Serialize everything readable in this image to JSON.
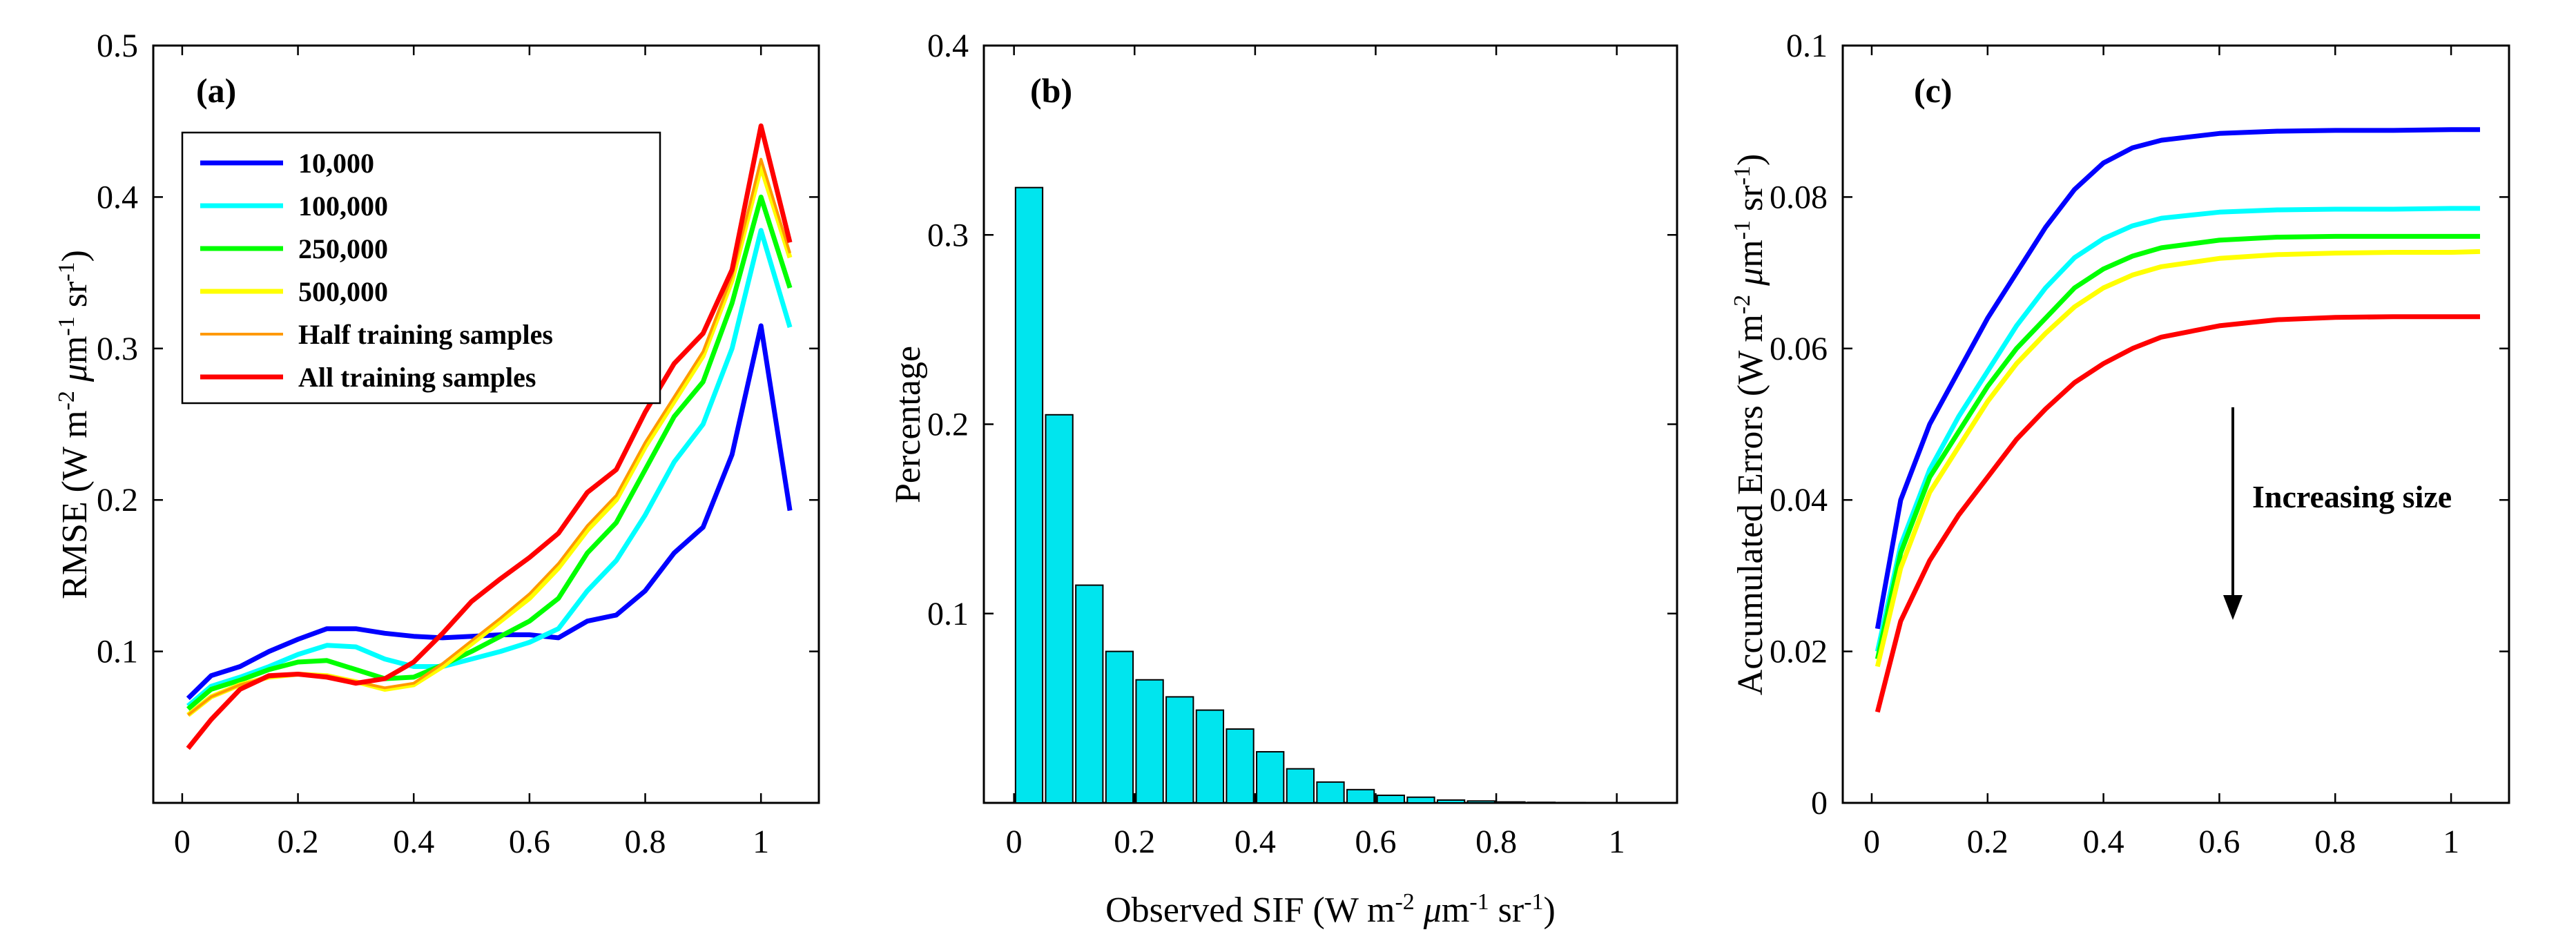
{
  "chart_data": [
    {
      "type": "line",
      "panel_label": "(a)",
      "ylabel": "RMSE (W m",
      "ylabel_sup1": "-2",
      "ylabel_mu": "μ",
      "ylabel_mid": "m",
      "ylabel_sup2": "-1",
      "ylabel_end": " sr",
      "ylabel_sup3": "-1",
      "ylabel_close": ")",
      "xlim": [
        -0.05,
        1.1
      ],
      "ylim": [
        0,
        0.5
      ],
      "xticks": [
        "0",
        "0.2",
        "0.4",
        "0.6",
        "0.8",
        "1"
      ],
      "xtick_values": [
        0,
        0.2,
        0.4,
        0.6,
        0.8,
        1
      ],
      "yticks": [
        "0.1",
        "0.2",
        "0.3",
        "0.4",
        "0.5"
      ],
      "ytick_values": [
        0.1,
        0.2,
        0.3,
        0.4,
        0.5
      ],
      "legend_position": "top-left",
      "x": [
        0.01,
        0.05,
        0.1,
        0.15,
        0.2,
        0.25,
        0.3,
        0.35,
        0.4,
        0.45,
        0.5,
        0.55,
        0.6,
        0.65,
        0.7,
        0.75,
        0.8,
        0.85,
        0.9,
        0.95,
        1.0,
        1.05
      ],
      "series": [
        {
          "name": "10,000",
          "color": "#0000ff",
          "values": [
            0.069,
            0.084,
            0.09,
            0.1,
            0.108,
            0.115,
            0.115,
            0.112,
            0.11,
            0.109,
            0.11,
            0.111,
            0.111,
            0.109,
            0.12,
            0.124,
            0.14,
            0.165,
            0.182,
            0.23,
            0.315,
            0.193
          ]
        },
        {
          "name": "100,000",
          "color": "#00ffff",
          "values": [
            0.064,
            0.077,
            0.083,
            0.09,
            0.098,
            0.104,
            0.103,
            0.095,
            0.09,
            0.09,
            0.095,
            0.1,
            0.106,
            0.115,
            0.14,
            0.16,
            0.19,
            0.225,
            0.25,
            0.3,
            0.378,
            0.314
          ]
        },
        {
          "name": "250,000",
          "color": "#00ff00",
          "values": [
            0.062,
            0.075,
            0.081,
            0.088,
            0.093,
            0.094,
            0.088,
            0.082,
            0.083,
            0.091,
            0.1,
            0.11,
            0.12,
            0.135,
            0.165,
            0.185,
            0.22,
            0.255,
            0.278,
            0.33,
            0.4,
            0.34
          ]
        },
        {
          "name": "500,000",
          "color": "#ffff00",
          "values": [
            0.058,
            0.07,
            0.078,
            0.083,
            0.085,
            0.084,
            0.08,
            0.075,
            0.078,
            0.09,
            0.105,
            0.12,
            0.135,
            0.155,
            0.18,
            0.2,
            0.235,
            0.265,
            0.295,
            0.345,
            0.42,
            0.36
          ]
        },
        {
          "name": "Half training samples",
          "color": "#ff9900",
          "values": [
            0.058,
            0.07,
            0.078,
            0.083,
            0.085,
            0.084,
            0.08,
            0.076,
            0.079,
            0.092,
            0.107,
            0.122,
            0.138,
            0.158,
            0.183,
            0.203,
            0.238,
            0.268,
            0.298,
            0.348,
            0.425,
            0.363
          ]
        },
        {
          "name": "All training samples",
          "color": "#ff0000",
          "values": [
            0.036,
            0.055,
            0.075,
            0.084,
            0.085,
            0.083,
            0.079,
            0.082,
            0.093,
            0.112,
            0.133,
            0.148,
            0.162,
            0.178,
            0.205,
            0.22,
            0.258,
            0.29,
            0.31,
            0.352,
            0.447,
            0.37
          ]
        }
      ]
    },
    {
      "type": "bar",
      "panel_label": "(b)",
      "ylabel": "Percentage",
      "xlabel": "Observed SIF (W m",
      "xlabel_sup1": "-2",
      "xlabel_mu": "μ",
      "xlabel_mid": "m",
      "xlabel_sup2": "-1",
      "xlabel_end": " sr",
      "xlabel_sup3": "-1",
      "xlabel_close": ")",
      "xlim": [
        -0.05,
        1.1
      ],
      "ylim": [
        0,
        0.4
      ],
      "xticks": [
        "0",
        "0.2",
        "0.4",
        "0.6",
        "0.8",
        "1"
      ],
      "xtick_values": [
        0,
        0.2,
        0.4,
        0.6,
        0.8,
        1
      ],
      "yticks": [
        "0.1",
        "0.2",
        "0.3",
        "0.4"
      ],
      "ytick_values": [
        0.1,
        0.2,
        0.3,
        0.4
      ],
      "bar_color": "#00e5ee",
      "x": [
        0.025,
        0.075,
        0.125,
        0.175,
        0.225,
        0.275,
        0.325,
        0.375,
        0.425,
        0.475,
        0.525,
        0.575,
        0.625,
        0.675,
        0.725,
        0.775,
        0.825,
        0.875,
        0.925,
        0.975,
        1.025
      ],
      "values": [
        0.325,
        0.205,
        0.115,
        0.08,
        0.065,
        0.056,
        0.049,
        0.039,
        0.027,
        0.018,
        0.011,
        0.007,
        0.004,
        0.003,
        0.0015,
        0.001,
        0.0005,
        0.0003,
        0.0002,
        0.0001,
        0.0001
      ]
    },
    {
      "type": "line",
      "panel_label": "(c)",
      "ylabel": "Accumulated Errors (W m",
      "ylabel_sup1": "-2",
      "ylabel_mu": "μ",
      "ylabel_mid": "m",
      "ylabel_sup2": "-1",
      "ylabel_end": " sr",
      "ylabel_sup3": "-1",
      "ylabel_close": ")",
      "xlim": [
        -0.05,
        1.1
      ],
      "ylim": [
        0,
        0.1
      ],
      "xticks": [
        "0",
        "0.2",
        "0.4",
        "0.6",
        "0.8",
        "1"
      ],
      "xtick_values": [
        0,
        0.2,
        0.4,
        0.6,
        0.8,
        1
      ],
      "yticks": [
        "0",
        "0.02",
        "0.04",
        "0.06",
        "0.08",
        "0.1"
      ],
      "ytick_values": [
        0,
        0.02,
        0.04,
        0.06,
        0.08,
        0.1
      ],
      "annotation": "Increasing size",
      "x": [
        0.01,
        0.05,
        0.1,
        0.15,
        0.2,
        0.25,
        0.3,
        0.35,
        0.4,
        0.45,
        0.5,
        0.6,
        0.7,
        0.8,
        0.9,
        1.0,
        1.05
      ],
      "series": [
        {
          "color": "#0000ff",
          "values": [
            0.023,
            0.04,
            0.05,
            0.057,
            0.064,
            0.07,
            0.076,
            0.081,
            0.0845,
            0.0865,
            0.0875,
            0.0884,
            0.0887,
            0.0888,
            0.0888,
            0.0889,
            0.0889
          ]
        },
        {
          "color": "#00ffff",
          "values": [
            0.02,
            0.034,
            0.044,
            0.051,
            0.057,
            0.063,
            0.068,
            0.072,
            0.0745,
            0.0762,
            0.0772,
            0.078,
            0.0783,
            0.0784,
            0.0784,
            0.0785,
            0.0785
          ]
        },
        {
          "color": "#00ff00",
          "values": [
            0.019,
            0.033,
            0.043,
            0.049,
            0.055,
            0.06,
            0.064,
            0.068,
            0.0705,
            0.0722,
            0.0733,
            0.0743,
            0.0747,
            0.0748,
            0.0748,
            0.0748,
            0.0748
          ]
        },
        {
          "color": "#ffff00",
          "values": [
            0.018,
            0.031,
            0.041,
            0.047,
            0.053,
            0.058,
            0.062,
            0.0655,
            0.068,
            0.0697,
            0.0708,
            0.0719,
            0.0724,
            0.0726,
            0.0727,
            0.0727,
            0.0728
          ]
        },
        {
          "color": "#ff0000",
          "values": [
            0.012,
            0.024,
            0.032,
            0.038,
            0.043,
            0.048,
            0.052,
            0.0555,
            0.058,
            0.06,
            0.0615,
            0.063,
            0.0638,
            0.0641,
            0.0642,
            0.0642,
            0.0642
          ]
        }
      ]
    }
  ]
}
